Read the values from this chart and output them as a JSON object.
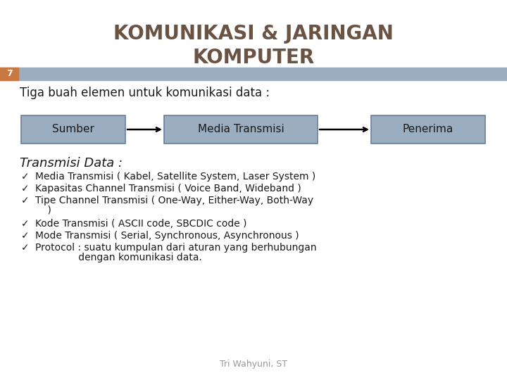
{
  "title_line1": "KOMUNIKASI & JARINGAN",
  "title_line2": "KOMPUTER",
  "title_color": "#6B5344",
  "slide_number": "7",
  "slide_number_bg": "#C87941",
  "header_bar_color": "#9BAEC0",
  "subtitle": "Tiga buah elemen untuk komunikasi data :",
  "boxes": [
    "Sumber",
    "Media Transmisi",
    "Penerima"
  ],
  "box_fill": "#9BAEC0",
  "box_edge": "#6A8099",
  "section_title": "Transmisi Data :",
  "footer": "Tri Wahyuni, ST",
  "bg_color": "#FFFFFF",
  "text_color": "#1A1A1A"
}
